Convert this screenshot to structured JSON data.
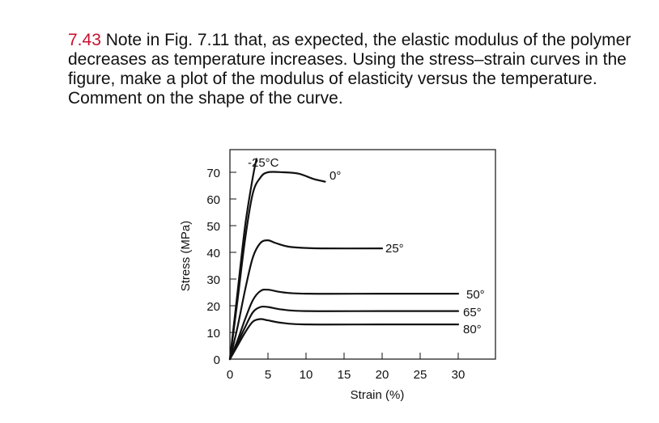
{
  "problem": {
    "number": "7.43",
    "text": "Note in Fig. 7.11 that, as expected, the elastic modulus of the polymer decreases as temperature increases. Using the stress–strain curves in the figure, make a plot of the modulus of elasticity versus the temperature. Comment on the shape of the curve."
  },
  "chart_data": {
    "type": "line",
    "title": "",
    "xlabel": "Strain (%)",
    "ylabel": "Stress (MPa)",
    "xlim": [
      0,
      32
    ],
    "ylim": [
      0,
      75
    ],
    "xticks": [
      0,
      5,
      10,
      15,
      20,
      25,
      30
    ],
    "yticks": [
      0,
      10,
      20,
      30,
      40,
      50,
      60,
      70
    ],
    "grid": false,
    "legend": "none",
    "series": [
      {
        "name": "-25°C",
        "x": [
          0,
          1.0,
          2.0,
          3.0,
          3.5
        ],
        "y": [
          0,
          25,
          50,
          68,
          75
        ]
      },
      {
        "name": "0°",
        "x": [
          0,
          1.0,
          2.0,
          3.0,
          4.0,
          5.0,
          7.0,
          9.0,
          11.0,
          12.5
        ],
        "y": [
          0,
          22,
          45,
          62,
          68,
          70,
          70,
          69.5,
          67.5,
          66.5
        ]
      },
      {
        "name": "25°",
        "x": [
          0,
          1.0,
          2.0,
          3.0,
          4.0,
          5.0,
          6.0,
          8.0,
          12.0,
          20.0
        ],
        "y": [
          0,
          12,
          26,
          38,
          43.5,
          44.5,
          43.5,
          42,
          41.5,
          41.5
        ]
      },
      {
        "name": "50°",
        "x": [
          0,
          1.0,
          2.0,
          3.0,
          4.0,
          5.0,
          7.0,
          10.0,
          20.0,
          30.0
        ],
        "y": [
          0,
          7,
          15,
          22,
          25.5,
          26,
          25,
          24.5,
          24.5,
          24.5
        ]
      },
      {
        "name": "65°",
        "x": [
          0,
          1.0,
          2.0,
          3.0,
          4.0,
          5.0,
          7.0,
          10.0,
          20.0,
          30.0
        ],
        "y": [
          0,
          6,
          12,
          17.5,
          19.5,
          19.5,
          18.5,
          18,
          18,
          18
        ]
      },
      {
        "name": "80°",
        "x": [
          0,
          1.0,
          2.0,
          3.0,
          4.0,
          5.0,
          7.0,
          10.0,
          20.0,
          30.0
        ],
        "y": [
          0,
          5,
          10,
          14,
          15,
          14.5,
          13.5,
          13,
          13,
          13
        ]
      }
    ]
  }
}
